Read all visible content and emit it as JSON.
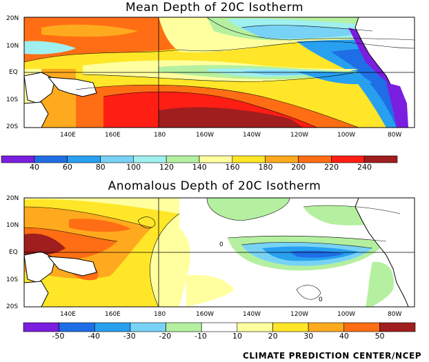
{
  "panel_top": {
    "title": "Mean Depth of 20C Isotherm",
    "lat_labels": [
      "20N",
      "10N",
      "EQ",
      "10S",
      "20S"
    ],
    "lon_labels": [
      "140E",
      "160E",
      "180",
      "160W",
      "140W",
      "120W",
      "100W",
      "80W"
    ],
    "colorbar": {
      "colors": [
        "#7a1ee0",
        "#1e6ee6",
        "#28a0f0",
        "#78d2f5",
        "#a0f0f0",
        "#b4f0a0",
        "#ffffa0",
        "#ffe628",
        "#ffaa1e",
        "#ff6e14",
        "#ff1e14",
        "#a01e1e"
      ],
      "labels": [
        "40",
        "60",
        "80",
        "100",
        "120",
        "140",
        "160",
        "180",
        "200",
        "220",
        "240"
      ]
    }
  },
  "panel_bottom": {
    "title": "Anomalous Depth of 20C Isotherm",
    "lat_labels": [
      "20N",
      "10N",
      "EQ",
      "10S",
      "20S"
    ],
    "lon_labels": [
      "140E",
      "160E",
      "180",
      "160W",
      "140W",
      "120W",
      "100W",
      "80W"
    ],
    "contour_label": "0",
    "colorbar": {
      "colors": [
        "#7a1ee0",
        "#1e6ee6",
        "#28a0f0",
        "#78d2f5",
        "#b4f0a0",
        "#ffffff",
        "#ffffa0",
        "#ffe628",
        "#ffaa1e",
        "#ff6e14",
        "#a01e1e"
      ],
      "labels": [
        "-50",
        "-40",
        "-30",
        "-20",
        "-10",
        "10",
        "20",
        "30",
        "40",
        "50"
      ]
    }
  },
  "credit": "CLIMATE PREDICTION CENTER/NCEP"
}
